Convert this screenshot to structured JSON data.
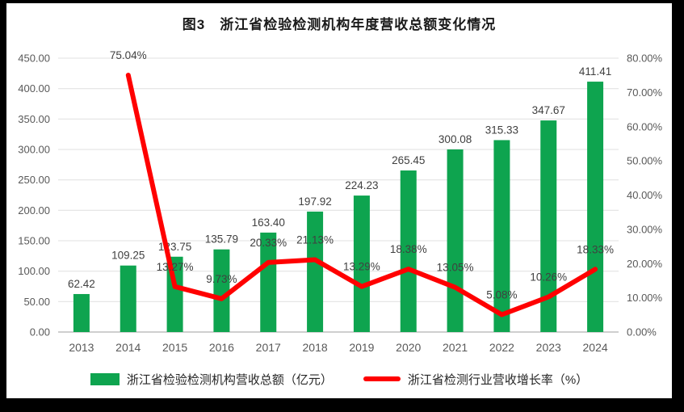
{
  "chart": {
    "title_prefix": "图3",
    "title_text": "浙江省检验检测机构年度营收总额变化情况"
  },
  "chart_data": {
    "type": "bar+line-dual-axis",
    "title": "图3 浙江省检验检测机构年度营收总额变化情况",
    "categories": [
      "2013",
      "2014",
      "2015",
      "2016",
      "2017",
      "2018",
      "2019",
      "2020",
      "2021",
      "2022",
      "2023",
      "2024"
    ],
    "series": [
      {
        "name": "浙江省检验检测机构营收总额（亿元）",
        "type": "bar",
        "axis": "left",
        "color": "#0ea44f",
        "values": [
          62.42,
          109.25,
          123.75,
          135.79,
          163.4,
          197.92,
          224.23,
          265.45,
          300.08,
          315.33,
          347.67,
          411.41
        ],
        "labels": [
          "62.42",
          "109.25",
          "123.75",
          "135.79",
          "163.40",
          "197.92",
          "224.23",
          "265.45",
          "300.08",
          "315.33",
          "347.67",
          "411.41"
        ]
      },
      {
        "name": "浙江省检测行业营收增长率（%）",
        "type": "line",
        "axis": "right",
        "color": "#ff0000",
        "values": [
          null,
          75.04,
          13.27,
          9.73,
          20.33,
          21.13,
          13.29,
          18.38,
          13.05,
          5.08,
          10.26,
          18.33
        ],
        "labels": [
          null,
          "75.04%",
          "13.27%",
          "9.73%",
          "20.33%",
          "21.13%",
          "13.29%",
          "18.38%",
          "13.05%",
          "5.08%",
          "10.26%",
          "18.33%"
        ]
      }
    ],
    "left_axis": {
      "min": 0,
      "max": 450,
      "step": 50,
      "tick_labels": [
        "0.00",
        "50.00",
        "100.00",
        "150.00",
        "200.00",
        "250.00",
        "300.00",
        "350.00",
        "400.00",
        "450.00"
      ]
    },
    "right_axis": {
      "min": 0,
      "max": 80,
      "step": 10,
      "tick_labels": [
        "0.00%",
        "10.00%",
        "20.00%",
        "30.00%",
        "40.00%",
        "50.00%",
        "60.00%",
        "70.00%",
        "80.00%"
      ]
    },
    "grid": true,
    "legend_position": "bottom",
    "colors": {
      "grid": "#e2e2e2",
      "axis_line": "#bfbfbf",
      "tick_text": "#595959",
      "label_text": "#404040",
      "title_text": "#1a1a1a",
      "panel_bg": "#ffffff",
      "page_bg": "#000000"
    }
  }
}
